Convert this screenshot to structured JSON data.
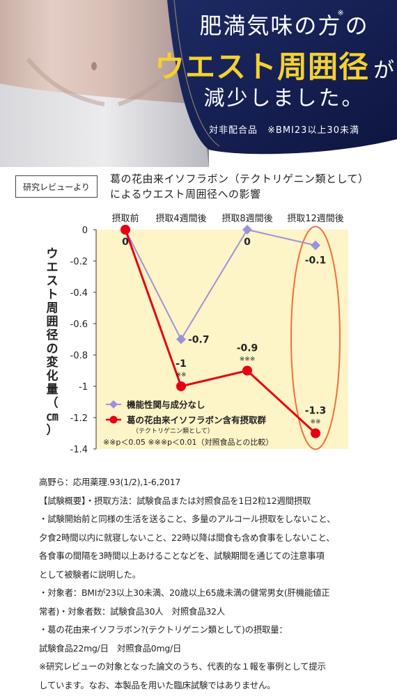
{
  "hero": {
    "line1": "肥満気味の方",
    "line1_mark": "※",
    "line1_suffix": "の",
    "line2": "ウエスト周囲径",
    "line2_suffix": "が",
    "line3": "減少しました。",
    "line4": "対非配合品　※BMI23以上30未満"
  },
  "badge": "研究レビューより",
  "chart_title_line1": "葛の花由来イソフラボン（テクトリゲニン類として）",
  "chart_title_line2": "によるウエスト周囲径への影響",
  "chart_data": {
    "type": "line",
    "categories": [
      "摂取前",
      "摂取4週間後",
      "摂取8週間後",
      "摂取12週間後"
    ],
    "ylabel": "ウエスト周囲径の変化量（㎝）",
    "ylim": [
      -1.4,
      0
    ],
    "yticks": [
      "0",
      "-0.2",
      "-0.4",
      "-0.6",
      "-0.8",
      "-1",
      "-1.2",
      "-1.4"
    ],
    "ytick_values": [
      0,
      -0.2,
      -0.4,
      -0.6,
      -0.8,
      -1,
      -1.2,
      -1.4
    ],
    "grid": false,
    "series": [
      {
        "name": "機能性関与成分なし",
        "values": [
          0,
          -0.7,
          0,
          -0.1
        ],
        "labels": [
          "0",
          "-0.7",
          "0",
          "-0.1"
        ],
        "color": "#9b93d8",
        "marker": "diamond"
      },
      {
        "name": "葛の花由来イソフラボン含有摂取群",
        "name_sub": "（テクトリゲニン類として）",
        "values": [
          0,
          -1,
          -0.9,
          -1.3
        ],
        "labels": [
          "",
          "-1",
          "-0.9",
          "-1.3"
        ],
        "significance": [
          "",
          "※※",
          "※※※",
          "※※"
        ],
        "color": "#e60012",
        "marker": "circle"
      }
    ],
    "legend_note": "※※p＜0.05 ※※※p＜0.01（対照食品との比較）",
    "legend_position": "bottom-left",
    "plot_background": "#fdf4c7",
    "highlight_category": "摂取12週間後",
    "highlight_color": "#f0703a"
  },
  "notes": [
    "高野ら：応用薬理.93(1/2),1-6,2017",
    "【試験概要】・摂取方法：試験食品または対照食品を1日2粒12週間摂取",
    "・試験開始前と同様の生活を送ること、多量のアルコール摂取をしないこと、",
    "夕食2時間以内に就寝しないこと、22時以降は間食も含め食事をしないこと、",
    "各食事の間隔を3時間以上あけることなどを、試験期間を通じての注意事項",
    "として被験者に説明した。",
    "・対象者：BMIが23以上30未満、20歳以上65歳未満の健常男女(肝機能値正",
    "常者)・対象者数：試験食品30人　対照食品32人",
    "・葛の花由来イソフラボン?(テクトリゲニン類として)の摂取量：",
    "試験食品22mg/日　対照食品0mg/日",
    "※研究レビューの対象となった論文のうち、代表的な１報を事例として提示",
    "しています。なお、本製品を用いた臨床試験ではありません。"
  ]
}
